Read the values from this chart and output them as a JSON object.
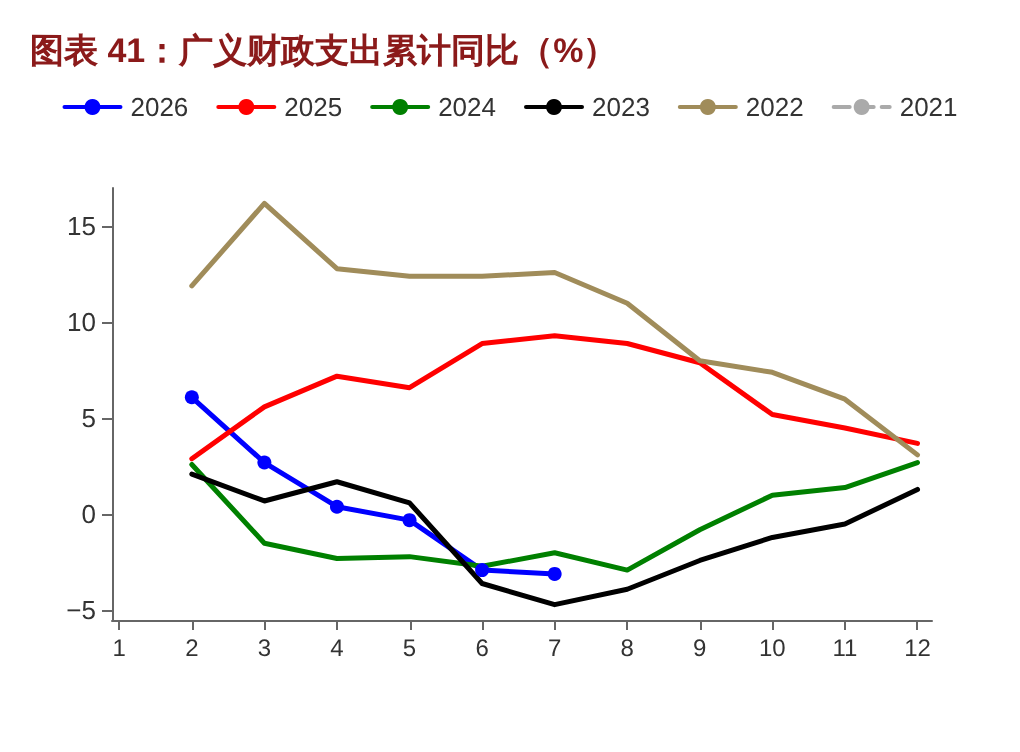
{
  "chart_data": {
    "type": "line",
    "title": "图表 41：广义财政支出累计同比（%）",
    "x": [
      2,
      3,
      4,
      5,
      6,
      7,
      8,
      9,
      10,
      11,
      12
    ],
    "xlim": [
      0.9,
      12.2
    ],
    "xticks": [
      1,
      2,
      3,
      4,
      5,
      6,
      7,
      8,
      9,
      10,
      11,
      12
    ],
    "ylim": [
      -5.5,
      17
    ],
    "yticks": [
      -5,
      0,
      5,
      10,
      15
    ],
    "grid": false,
    "legend": "top",
    "series": [
      {
        "name": "2026",
        "color": "#0000ff",
        "marker": "circle",
        "values": [
          6.1,
          2.7,
          0.4,
          -0.3,
          -2.9,
          -3.1,
          null,
          null,
          null,
          null,
          null
        ]
      },
      {
        "name": "2025",
        "color": "#ff0000",
        "values": [
          2.9,
          5.6,
          7.2,
          6.6,
          8.9,
          9.3,
          8.9,
          7.9,
          5.2,
          4.5,
          3.7
        ]
      },
      {
        "name": "2024",
        "color": "#008000",
        "values": [
          2.6,
          -1.5,
          -2.3,
          -2.2,
          -2.7,
          -2.0,
          -2.9,
          -0.8,
          1.0,
          1.4,
          2.7
        ]
      },
      {
        "name": "2023",
        "color": "#000000",
        "values": [
          2.1,
          0.7,
          1.7,
          0.6,
          -3.6,
          -4.7,
          -3.9,
          -2.4,
          -1.2,
          -0.5,
          1.3
        ]
      },
      {
        "name": "2022",
        "color": "#a08c5a",
        "values": [
          11.9,
          16.2,
          12.8,
          12.4,
          12.4,
          12.6,
          11.0,
          8.0,
          7.4,
          6.0,
          3.1
        ]
      },
      {
        "name": "2021",
        "color": "#aaaaaa",
        "line_style": "dashed",
        "values": [
          null,
          null,
          null,
          null,
          null,
          null,
          null,
          null,
          null,
          null,
          null
        ]
      }
    ]
  }
}
